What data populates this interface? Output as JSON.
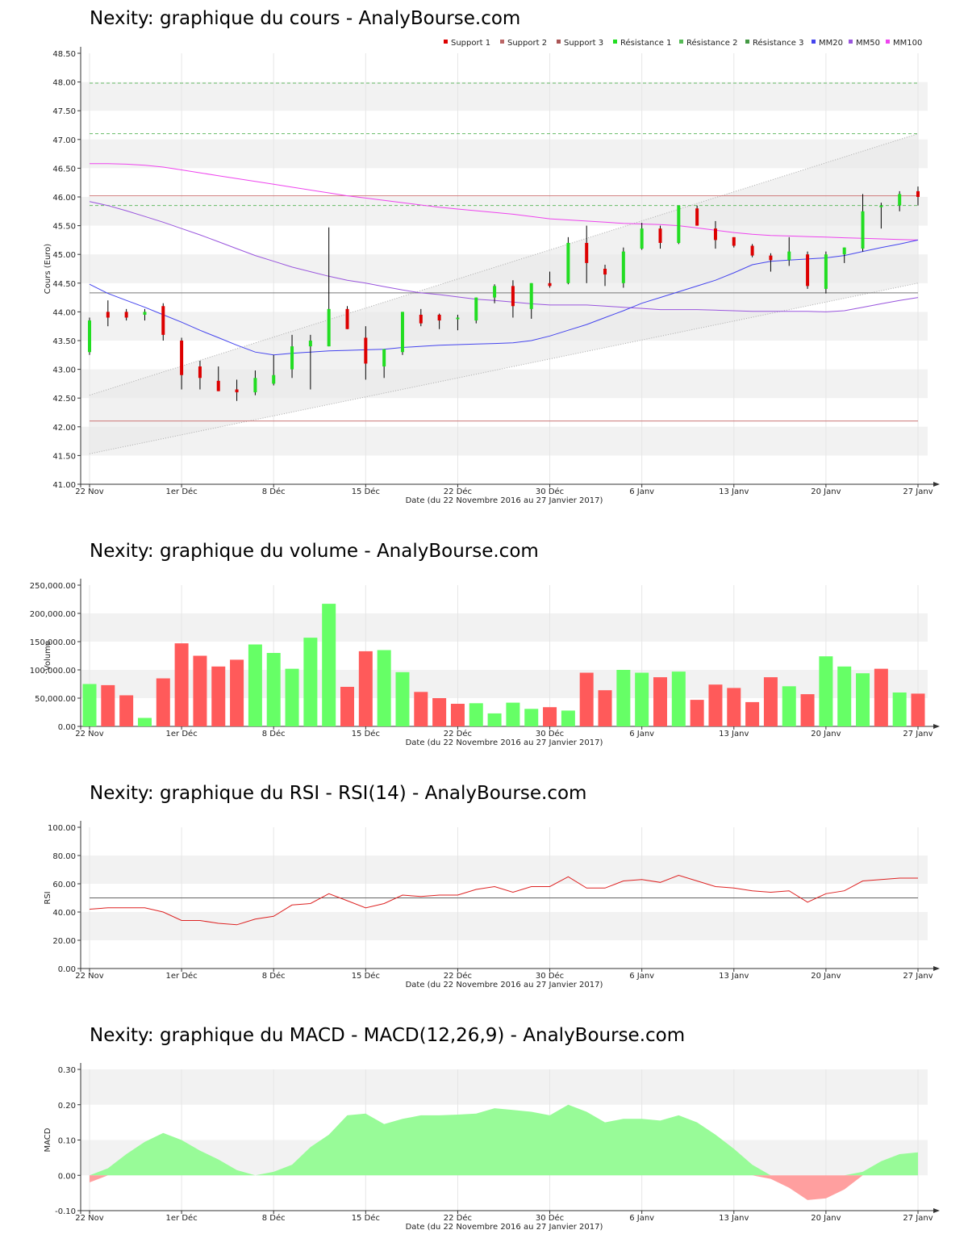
{
  "x_labels": [
    "22 Nov",
    "1er Déc",
    "8 Déc",
    "15 Déc",
    "22 Déc",
    "30 Déc",
    "6 Janv",
    "13 Janv",
    "20 Janv",
    "27 Janv"
  ],
  "x_axis_title": "Date (du 22 Novembre 2016 au 27 Janvier 2017)",
  "colors": {
    "up": "#22dd22",
    "down": "#dd0000",
    "vol_up": "#66ff66",
    "vol_down": "#ff5a5a",
    "mm20": "#4444ee",
    "mm50": "#9955dd",
    "mm100": "#ee44ee",
    "support": "#cc7777",
    "resistance": "#66bb66",
    "rsi": "#dd2222",
    "macd_pos": "#98fb98",
    "macd_neg": "#ff9f9f",
    "band": "#f2f2f2"
  },
  "price_chart": {
    "title": "Nexity: graphique du cours - AnalyBourse.com",
    "ylabel": "Cours (Euro)",
    "yticks": [
      "41.00",
      "41.50",
      "42.00",
      "42.50",
      "43.00",
      "43.50",
      "44.00",
      "44.50",
      "45.00",
      "45.50",
      "46.00",
      "46.50",
      "47.00",
      "47.50",
      "48.00",
      "48.50"
    ],
    "legend": [
      "Support 1",
      "Support 2",
      "Support 3",
      "Résistance 1",
      "Résistance 2",
      "Résistance 3",
      "MM20",
      "MM50",
      "MM100"
    ]
  },
  "volume_chart": {
    "title": "Nexity: graphique du volume - AnalyBourse.com",
    "ylabel": "Volume",
    "yticks": [
      "0.00",
      "50,000.00",
      "100,000.00",
      "150,000.00",
      "200,000.00",
      "250,000.00"
    ]
  },
  "rsi_chart": {
    "title": "Nexity: graphique du RSI - RSI(14) - AnalyBourse.com",
    "ylabel": "RSI",
    "yticks": [
      "0.00",
      "20.00",
      "40.00",
      "60.00",
      "80.00",
      "100.00"
    ]
  },
  "macd_chart": {
    "title": "Nexity: graphique du MACD - MACD(12,26,9) - AnalyBourse.com",
    "ylabel": "MACD",
    "yticks": [
      "-0.10",
      "0.00",
      "0.10",
      "0.20",
      "0.30"
    ]
  },
  "chart_data": [
    {
      "type": "candlestick",
      "title": "Nexity: graphique du cours - AnalyBourse.com",
      "ylabel": "Cours (Euro)",
      "xlabel": "Date (du 22 Novembre 2016 au 27 Janvier 2017)",
      "ylim": [
        41.0,
        48.5
      ],
      "ohlc": [
        [
          43.3,
          43.9,
          43.25,
          43.85
        ],
        [
          44.0,
          44.2,
          43.75,
          43.9
        ],
        [
          44.0,
          44.05,
          43.85,
          43.9
        ],
        [
          43.95,
          44.05,
          43.85,
          44.0
        ],
        [
          44.1,
          44.15,
          43.5,
          43.6
        ],
        [
          43.5,
          43.55,
          42.65,
          42.9
        ],
        [
          43.05,
          43.15,
          42.65,
          42.85
        ],
        [
          42.8,
          43.05,
          42.62,
          42.62
        ],
        [
          42.65,
          42.82,
          42.45,
          42.6
        ],
        [
          42.6,
          42.98,
          42.55,
          42.85
        ],
        [
          42.75,
          43.25,
          42.72,
          42.9
        ],
        [
          43.0,
          43.6,
          42.85,
          43.4
        ],
        [
          43.4,
          43.6,
          42.65,
          43.5
        ],
        [
          43.4,
          45.47,
          43.4,
          44.05
        ],
        [
          44.05,
          44.1,
          43.7,
          43.7
        ],
        [
          43.55,
          43.75,
          42.82,
          43.1
        ],
        [
          43.05,
          43.35,
          42.85,
          43.35
        ],
        [
          43.3,
          44.0,
          43.25,
          44.0
        ],
        [
          43.95,
          44.05,
          43.75,
          43.8
        ],
        [
          43.95,
          43.97,
          43.7,
          43.85
        ],
        [
          43.9,
          43.95,
          43.68,
          43.9
        ],
        [
          43.85,
          44.25,
          43.8,
          44.25
        ],
        [
          44.25,
          44.48,
          44.15,
          44.45
        ],
        [
          44.45,
          44.55,
          43.9,
          44.1
        ],
        [
          44.05,
          44.5,
          43.88,
          44.5
        ],
        [
          44.5,
          44.7,
          44.42,
          44.45
        ],
        [
          44.5,
          45.3,
          44.48,
          45.2
        ],
        [
          45.2,
          45.5,
          44.5,
          44.85
        ],
        [
          44.75,
          44.82,
          44.45,
          44.65
        ],
        [
          44.5,
          45.12,
          44.42,
          45.05
        ],
        [
          45.1,
          45.55,
          45.08,
          45.45
        ],
        [
          45.45,
          45.5,
          45.1,
          45.2
        ],
        [
          45.2,
          45.85,
          45.18,
          45.85
        ],
        [
          45.8,
          45.85,
          45.5,
          45.5
        ],
        [
          45.45,
          45.58,
          45.1,
          45.25
        ],
        [
          45.3,
          45.3,
          45.12,
          45.15
        ],
        [
          45.15,
          45.18,
          44.95,
          44.98
        ],
        [
          44.98,
          45.02,
          44.7,
          44.9
        ],
        [
          44.9,
          45.3,
          44.8,
          45.05
        ],
        [
          45.0,
          45.05,
          44.4,
          44.45
        ],
        [
          44.4,
          45.05,
          44.32,
          45.0
        ],
        [
          45.0,
          45.12,
          44.85,
          45.12
        ],
        [
          45.1,
          46.05,
          45.05,
          45.75
        ],
        [
          45.85,
          45.9,
          45.45,
          45.85
        ],
        [
          45.85,
          46.1,
          45.75,
          46.05
        ],
        [
          46.1,
          46.18,
          45.85,
          46.0
        ]
      ],
      "support": [
        42.1,
        44.33,
        46.02
      ],
      "resistance": [
        45.85,
        47.1,
        47.98
      ],
      "mm20": [
        44.48,
        44.32,
        44.2,
        44.08,
        43.95,
        43.82,
        43.68,
        43.55,
        43.42,
        43.3,
        43.25,
        43.28,
        43.3,
        43.32,
        43.33,
        43.34,
        43.35,
        43.38,
        43.4,
        43.42,
        43.43,
        43.44,
        43.45,
        43.46,
        43.5,
        43.58,
        43.68,
        43.78,
        43.9,
        44.02,
        44.15,
        44.25,
        44.35,
        44.45,
        44.55,
        44.68,
        44.82,
        44.88,
        44.9,
        44.92,
        44.94,
        44.98,
        45.05,
        45.12,
        45.18,
        45.25
      ],
      "mm50": [
        45.92,
        45.85,
        45.76,
        45.66,
        45.56,
        45.45,
        45.34,
        45.22,
        45.1,
        44.98,
        44.88,
        44.78,
        44.7,
        44.62,
        44.55,
        44.5,
        44.44,
        44.38,
        44.33,
        44.3,
        44.26,
        44.22,
        44.2,
        44.17,
        44.14,
        44.12,
        44.12,
        44.12,
        44.1,
        44.08,
        44.06,
        44.04,
        44.04,
        44.04,
        44.03,
        44.02,
        44.01,
        44.01,
        44.01,
        44.01,
        44.0,
        44.02,
        44.08,
        44.14,
        44.2,
        44.25
      ],
      "mm100": [
        46.58,
        46.58,
        46.57,
        46.55,
        46.52,
        46.47,
        46.42,
        46.37,
        46.32,
        46.27,
        46.22,
        46.17,
        46.12,
        46.07,
        46.02,
        45.98,
        45.94,
        45.9,
        45.86,
        45.82,
        45.79,
        45.76,
        45.73,
        45.7,
        45.66,
        45.62,
        45.6,
        45.58,
        45.56,
        45.54,
        45.53,
        45.52,
        45.5,
        45.46,
        45.42,
        45.38,
        45.35,
        45.33,
        45.32,
        45.31,
        45.3,
        45.29,
        45.28,
        45.27,
        45.26,
        45.25
      ],
      "trend_channel": {
        "lower": [
          41.53,
          44.5
        ],
        "upper": [
          42.55,
          47.1
        ]
      }
    },
    {
      "type": "bar",
      "title": "Nexity: graphique du volume - AnalyBourse.com",
      "ylabel": "Volume",
      "ylim": [
        0,
        250000
      ],
      "values": [
        75000,
        73000,
        55000,
        15000,
        85000,
        147000,
        125000,
        106000,
        118000,
        145000,
        130000,
        102000,
        157000,
        217000,
        70000,
        133000,
        135000,
        96000,
        61000,
        50000,
        40000,
        41000,
        23000,
        42000,
        31000,
        34000,
        28000,
        95000,
        64000,
        100000,
        95000,
        87000,
        97000,
        47000,
        74000,
        68000,
        43000,
        87000,
        71000,
        57000,
        124000,
        106000,
        94000,
        102000,
        60000,
        58000
      ],
      "up": [
        true,
        false,
        false,
        true,
        false,
        false,
        false,
        false,
        false,
        true,
        true,
        true,
        true,
        true,
        false,
        false,
        true,
        true,
        false,
        false,
        false,
        true,
        true,
        true,
        true,
        false,
        true,
        false,
        false,
        true,
        true,
        false,
        true,
        false,
        false,
        false,
        false,
        false,
        true,
        false,
        true,
        true,
        true,
        false,
        true,
        false
      ]
    },
    {
      "type": "line",
      "title": "Nexity: graphique du RSI - RSI(14) - AnalyBourse.com",
      "ylabel": "RSI",
      "ylim": [
        0,
        100
      ],
      "reference": 50,
      "x": [
        0,
        1,
        2,
        3,
        4,
        5,
        6,
        7,
        8,
        9,
        10,
        11,
        12,
        13,
        14,
        15,
        16,
        17,
        18,
        19,
        20,
        21,
        22,
        23,
        24,
        25,
        26,
        27,
        28,
        29,
        30,
        31,
        32,
        33,
        34,
        35,
        36,
        37,
        38,
        39,
        40,
        41,
        42,
        43,
        44,
        45
      ],
      "values": [
        42,
        43,
        43,
        43,
        40,
        34,
        34,
        32,
        31,
        35,
        37,
        45,
        46,
        53,
        48,
        43,
        46,
        52,
        51,
        52,
        52,
        56,
        58,
        54,
        58,
        58,
        65,
        57,
        57,
        62,
        63,
        61,
        66,
        62,
        58,
        57,
        55,
        54,
        55,
        47,
        53,
        55,
        62,
        63,
        64,
        64
      ]
    },
    {
      "type": "area",
      "title": "Nexity: graphique du MACD - MACD(12,26,9) - AnalyBourse.com",
      "ylabel": "MACD",
      "ylim": [
        -0.1,
        0.3
      ],
      "x": [
        0,
        1,
        2,
        3,
        4,
        5,
        6,
        7,
        8,
        9,
        10,
        11,
        12,
        13,
        14,
        15,
        16,
        17,
        18,
        19,
        20,
        21,
        22,
        23,
        24,
        25,
        26,
        27,
        28,
        29,
        30,
        31,
        32,
        33,
        34,
        35,
        36,
        37,
        38,
        39,
        40,
        41,
        42,
        43,
        44,
        45
      ],
      "values": [
        -0.02,
        0.02,
        0.06,
        0.095,
        0.12,
        0.1,
        0.07,
        0.045,
        0.015,
        0.0,
        0.01,
        0.03,
        0.08,
        0.115,
        0.17,
        0.175,
        0.145,
        0.16,
        0.17,
        0.17,
        0.172,
        0.175,
        0.19,
        0.185,
        0.18,
        0.17,
        0.2,
        0.18,
        0.15,
        0.16,
        0.16,
        0.155,
        0.17,
        0.15,
        0.115,
        0.075,
        0.03,
        -0.01,
        -0.035,
        -0.07,
        -0.065,
        -0.04,
        0.01,
        0.04,
        0.06,
        0.065
      ]
    }
  ]
}
